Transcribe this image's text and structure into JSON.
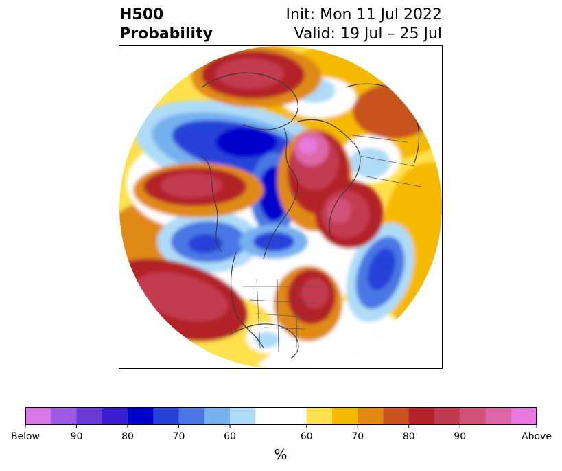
{
  "title": {
    "variable": "H500",
    "product": "Probability",
    "init": "Init: Mon 11 Jul 2022",
    "valid": "Valid: 19 Jul – 25 Jul"
  },
  "colorbar": {
    "colors": [
      "#d977e8",
      "#9f59e3",
      "#6a3ad9",
      "#3a1ed3",
      "#0000cc",
      "#2742d8",
      "#4a77e3",
      "#76b1ef",
      "#aedcf8",
      "#ffffff",
      "#ffe04d",
      "#f5b900",
      "#e08a12",
      "#c9531c",
      "#b22228",
      "#c23a4f",
      "#d15379",
      "#dd66a7",
      "#e67ae0"
    ],
    "tick_labels": [
      "Below",
      "90",
      "80",
      "70",
      "60",
      "60",
      "70",
      "80",
      "90",
      "Above"
    ],
    "unit": "%"
  }
}
